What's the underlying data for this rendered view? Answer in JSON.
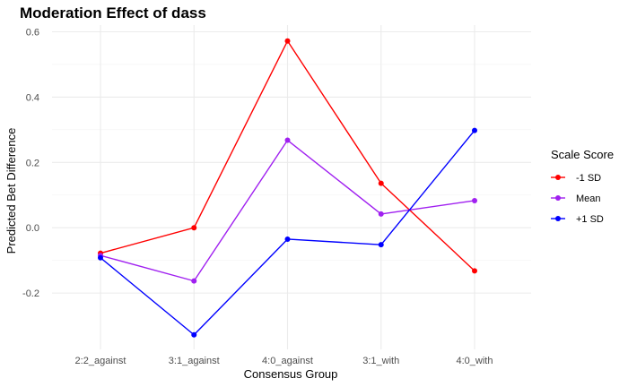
{
  "chart_data": {
    "type": "line",
    "title": "Moderation Effect of dass",
    "xlabel": "Consensus Group",
    "ylabel": "Predicted Bet Difference",
    "categories": [
      "2:2_against",
      "3:1_against",
      "4:0_against",
      "3:1_with",
      "4:0_with"
    ],
    "ylim": [
      -0.33,
      0.6
    ],
    "yticks": [
      -0.2,
      0.0,
      0.2,
      0.4,
      0.6
    ],
    "ytick_labels": [
      "-0.2",
      "0.0",
      "0.2",
      "0.4",
      "0.6"
    ],
    "grid": true,
    "legend": {
      "title": "Scale Score",
      "position": "right"
    },
    "series": [
      {
        "name": "-1 SD",
        "color": "#ff0000",
        "values": [
          -0.078,
          0.0,
          0.572,
          0.136,
          -0.132
        ]
      },
      {
        "name": "Mean",
        "color": "#a020f0",
        "values": [
          -0.085,
          -0.163,
          0.268,
          0.042,
          0.083
        ]
      },
      {
        "name": "+1 SD",
        "color": "#0000ff",
        "values": [
          -0.092,
          -0.328,
          -0.035,
          -0.052,
          0.298
        ]
      }
    ]
  }
}
